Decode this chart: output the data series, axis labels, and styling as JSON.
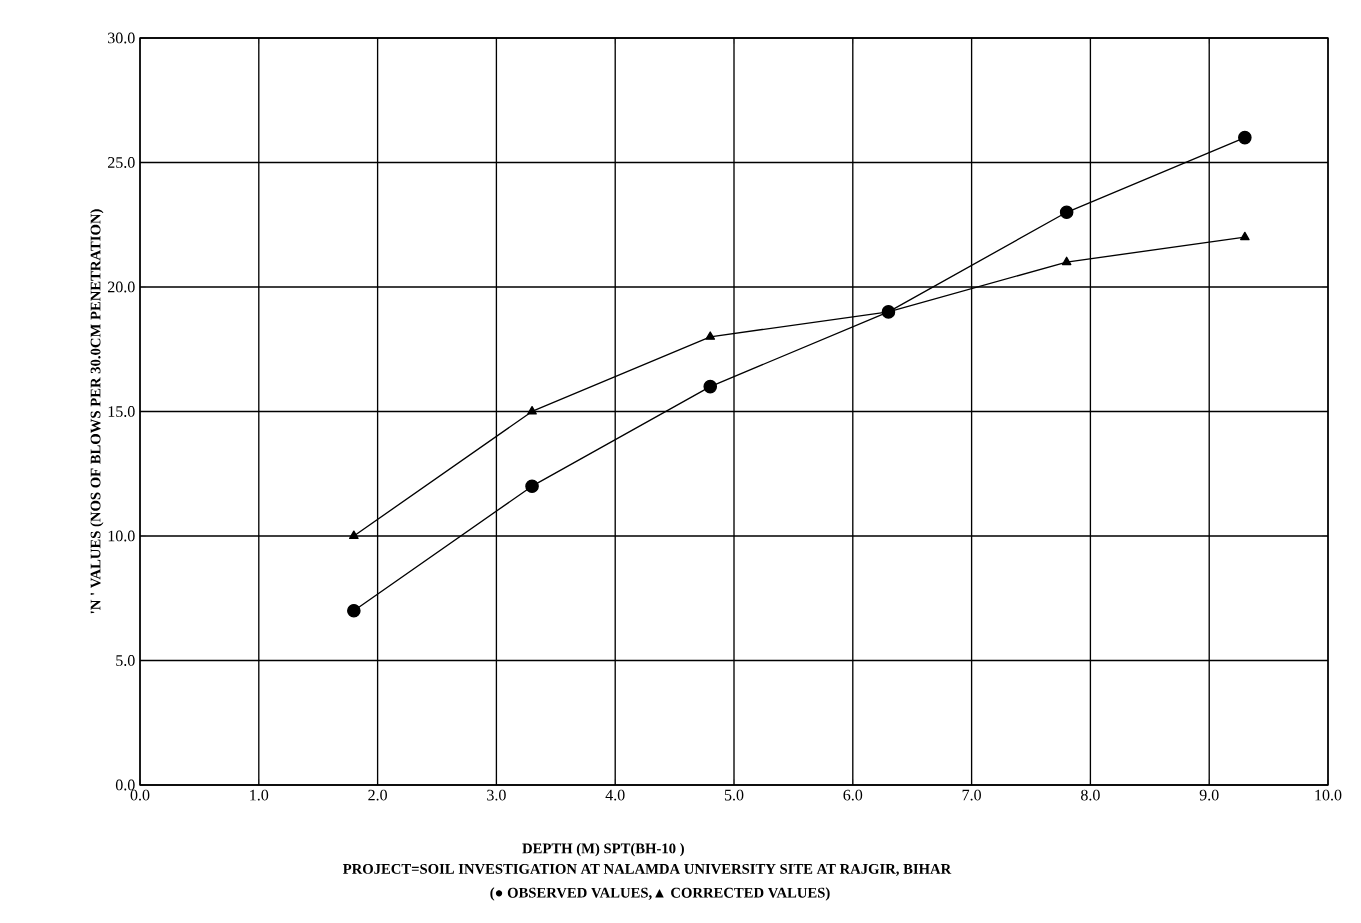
{
  "chart_data": {
    "type": "line",
    "xlabel": "DEPTH (M) SPT(BH-10 )",
    "ylabel": "'N ' VALUES (NOS OF BLOWS PER 30.0CM PENETRATION)",
    "annotations": [
      "PROJECT=SOIL INVESTIGATION AT NALAMDA UNIVERSITY SITE AT RAJGIR, BIHAR",
      "(● OBSERVED VALUES,▲ CORRECTED VALUES)"
    ],
    "x": [
      1.8,
      3.3,
      4.8,
      6.3,
      7.8,
      9.3
    ],
    "series": [
      {
        "color": "#000000",
        "marker": "circle",
        "values": [
          7,
          12,
          16,
          19,
          23,
          26
        ]
      },
      {
        "color": "#000000",
        "marker": "triangle",
        "values": [
          10,
          15,
          18,
          19,
          21,
          22
        ]
      }
    ],
    "xlim": [
      0,
      10
    ],
    "ylim": [
      0,
      30
    ],
    "xticks": [
      {
        "value": 0,
        "label": "0.0"
      },
      {
        "value": 1,
        "label": "1.0"
      },
      {
        "value": 2,
        "label": "2.0"
      },
      {
        "value": 3,
        "label": "3.0"
      },
      {
        "value": 4,
        "label": "4.0"
      },
      {
        "value": 5,
        "label": "5.0"
      },
      {
        "value": 6,
        "label": "6.0"
      },
      {
        "value": 7,
        "label": "7.0"
      },
      {
        "value": 8,
        "label": "8.0"
      },
      {
        "value": 9,
        "label": "9.0"
      },
      {
        "value": 10,
        "label": "10.0"
      }
    ],
    "yticks": [
      {
        "value": 0,
        "label": "0.0"
      },
      {
        "value": 5,
        "label": "5.0"
      },
      {
        "value": 10,
        "label": "10.0"
      },
      {
        "value": 15,
        "label": "15.0"
      },
      {
        "value": 20,
        "label": "20.0"
      },
      {
        "value": 25,
        "label": "25.0"
      },
      {
        "value": 30,
        "label": "30.0"
      }
    ],
    "grid": true,
    "line_style": "solid"
  }
}
